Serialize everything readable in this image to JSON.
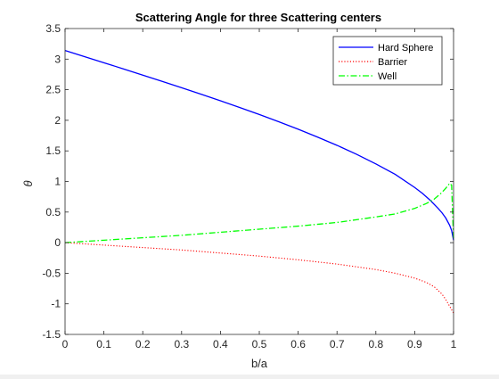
{
  "chart_data": {
    "type": "line",
    "title": "Scattering Angle for three Scattering centers",
    "xlabel": "b/a",
    "ylabel": "θ",
    "xlim": [
      0,
      1
    ],
    "ylim": [
      -1.5,
      3.5
    ],
    "xticks": [
      0,
      0.1,
      0.2,
      0.3,
      0.4,
      0.5,
      0.6,
      0.7,
      0.8,
      0.9,
      1
    ],
    "xtick_labels": [
      "0",
      "0.1",
      "0.2",
      "0.3",
      "0.4",
      "0.5",
      "0.6",
      "0.7",
      "0.8",
      "0.9",
      "1"
    ],
    "yticks": [
      -1.5,
      -1,
      -0.5,
      0,
      0.5,
      1,
      1.5,
      2,
      2.5,
      3,
      3.5
    ],
    "ytick_labels": [
      "-1.5",
      "-1",
      "-0.5",
      "0",
      "0.5",
      "1",
      "1.5",
      "2",
      "2.5",
      "3",
      "3.5"
    ],
    "grid": false,
    "legend_position": "top-right",
    "series": [
      {
        "name": "Hard Sphere",
        "color": "#0000ff",
        "style": "solid",
        "x": [
          0,
          0.05,
          0.1,
          0.15,
          0.2,
          0.25,
          0.3,
          0.35,
          0.4,
          0.45,
          0.5,
          0.55,
          0.6,
          0.65,
          0.7,
          0.75,
          0.8,
          0.85,
          0.9,
          0.92,
          0.94,
          0.96,
          0.97,
          0.98,
          0.99,
          0.995,
          1
        ],
        "y": [
          3.1416,
          3.0414,
          2.9413,
          2.8405,
          2.7389,
          2.6362,
          2.5322,
          2.4265,
          2.3186,
          2.2083,
          2.0944,
          1.9765,
          1.8546,
          1.7249,
          1.5908,
          1.4455,
          1.287,
          1.1152,
          0.9021,
          0.805,
          0.692,
          0.562,
          0.49,
          0.402,
          0.283,
          0.2,
          0.04
        ]
      },
      {
        "name": "Barrier",
        "color": "#ff0000",
        "style": "dotted",
        "x": [
          0,
          0.1,
          0.2,
          0.3,
          0.4,
          0.5,
          0.6,
          0.7,
          0.8,
          0.85,
          0.9,
          0.93,
          0.95,
          0.97,
          0.98,
          0.99,
          1
        ],
        "y": [
          0,
          -0.04,
          -0.08,
          -0.12,
          -0.17,
          -0.22,
          -0.28,
          -0.35,
          -0.44,
          -0.5,
          -0.58,
          -0.65,
          -0.72,
          -0.84,
          -0.93,
          -1.04,
          -1.15
        ]
      },
      {
        "name": "Well",
        "color": "#00ff00",
        "style": "dashdot",
        "x": [
          0,
          0.1,
          0.2,
          0.3,
          0.4,
          0.5,
          0.6,
          0.7,
          0.8,
          0.85,
          0.9,
          0.93,
          0.95,
          0.97,
          0.98,
          0.99,
          0.995,
          1
        ],
        "y": [
          0,
          0.04,
          0.08,
          0.12,
          0.17,
          0.22,
          0.27,
          0.33,
          0.42,
          0.47,
          0.56,
          0.64,
          0.71,
          0.82,
          0.89,
          0.97,
          0.94,
          0.05
        ]
      }
    ]
  }
}
